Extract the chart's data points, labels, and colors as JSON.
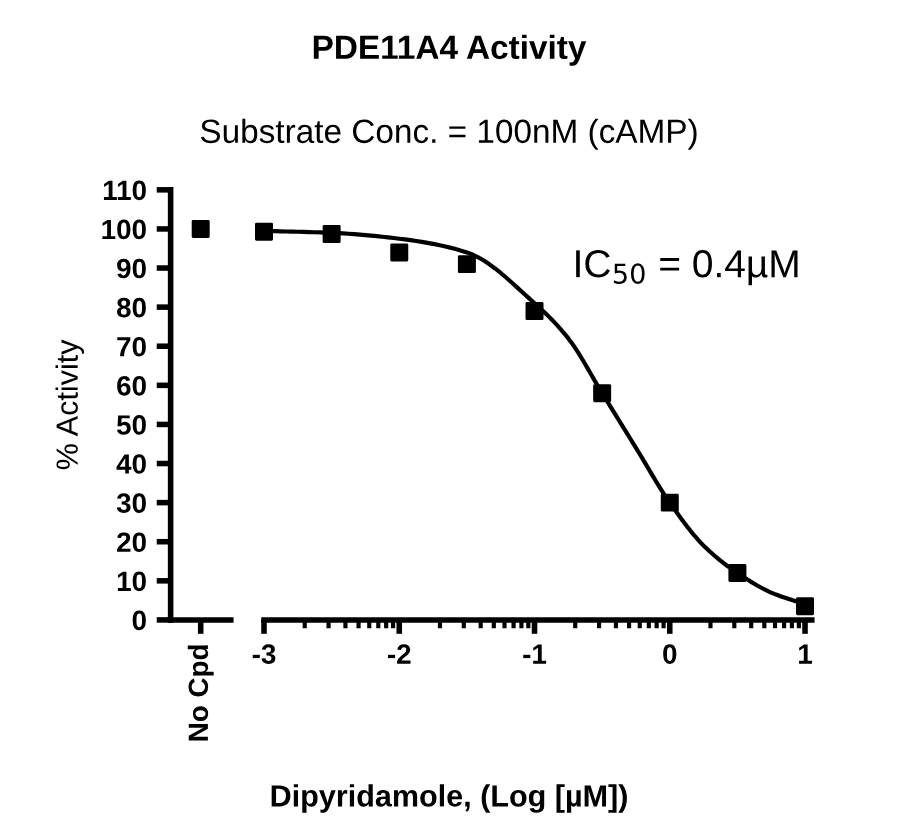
{
  "chart_data": [
    {
      "type": "scatter",
      "categories": [
        "No Cpd"
      ],
      "values": [
        100
      ],
      "color": "#000000",
      "marker": "square",
      "ylabel": "% Activity",
      "ylim": [
        0,
        110
      ],
      "yticks": [
        0,
        10,
        20,
        30,
        40,
        50,
        60,
        70,
        80,
        90,
        100,
        110
      ]
    },
    {
      "type": "scatter",
      "title": "PDE11A4 Activity",
      "subtitle": "Substrate Conc. = 100nM (cAMP)",
      "xlabel": "Dipyridamole, (Log [µM])",
      "annotations": [
        "IC$_{50}$ = 0.4µM"
      ],
      "tick_labels": "x",
      "series": [
        {
          "type": "scatter",
          "marker": "square",
          "color": "#000000",
          "x": [
            -3,
            -2.5,
            -2,
            -1.5,
            -1,
            -0.5,
            0,
            0.5,
            1
          ],
          "values": [
            99.3,
            98.7,
            94,
            91,
            79,
            58,
            30,
            12,
            3.5
          ]
        },
        {
          "type": "line",
          "marker": "none",
          "color": "#000000",
          "x": [
            -3,
            -2.5,
            -2,
            -1.5,
            -1,
            -0.75,
            -0.5,
            -0.25,
            0,
            0.25,
            0.5,
            0.75,
            1
          ],
          "values": [
            99.5,
            99,
            97.5,
            94,
            81,
            72,
            58,
            44,
            30,
            19,
            12,
            7,
            4
          ]
        }
      ],
      "xlim": [
        -3,
        1.05
      ],
      "xticks": [
        -3,
        -2,
        -1,
        0,
        1
      ],
      "ylim": [
        0,
        110
      ]
    }
  ]
}
